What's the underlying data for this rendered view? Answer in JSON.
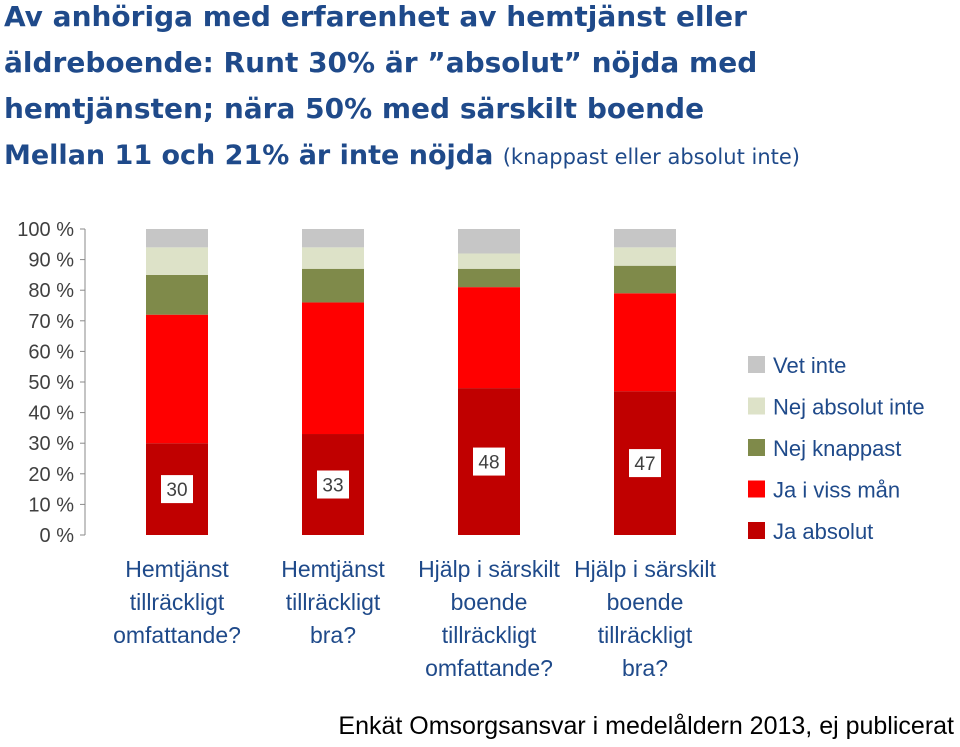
{
  "title": {
    "line1": "Av anhöriga med erfarenhet av hemtjänst eller",
    "line2": "äldreboende: Runt 30% är ”absolut” nöjda med",
    "line3": "hemtjänsten; nära 50% med särskilt boende",
    "line4": "Mellan 11 och 21% är inte nöjda",
    "line4_sub": "(knappast eller absolut inte)"
  },
  "footer": "Enkät Omsorgsansvar i medelåldern 2013, ej publicerat",
  "chart_data": {
    "type": "bar",
    "stacked": true,
    "percent": true,
    "categories": [
      [
        "Hemtjänst",
        "tillräckligt",
        "omfattande?"
      ],
      [
        "Hemtjänst",
        "tillräckligt",
        "bra?"
      ],
      [
        "Hjälp i särskilt",
        "boende",
        "tillräckligt",
        "omfattande?"
      ],
      [
        "Hjälp i särskilt",
        "boende",
        "tillräckligt",
        "bra?"
      ]
    ],
    "series": [
      {
        "name": "Ja absolut",
        "color": "#c00000",
        "values": [
          30,
          33,
          48,
          47
        ]
      },
      {
        "name": "Ja i viss mån",
        "color": "#ff0000",
        "values": [
          42,
          43,
          33,
          32
        ]
      },
      {
        "name": "Nej knappast",
        "color": "#7f8a4a",
        "values": [
          13,
          11,
          6,
          9
        ]
      },
      {
        "name": "Nej absolut inte",
        "color": "#dde2c8",
        "values": [
          9,
          7,
          5,
          6
        ]
      },
      {
        "name": "Vet inte",
        "color": "#c6c6c6",
        "values": [
          6,
          6,
          8,
          6
        ]
      }
    ],
    "data_labels": [
      "30",
      "33",
      "48",
      "47"
    ],
    "yticks": [
      "0 %",
      "10 %",
      "20 %",
      "30 %",
      "40 %",
      "50 %",
      "60 %",
      "70 %",
      "80 %",
      "90 %",
      "100 %"
    ],
    "ylim": [
      0,
      100
    ],
    "legend_position": "right",
    "grid": false
  }
}
